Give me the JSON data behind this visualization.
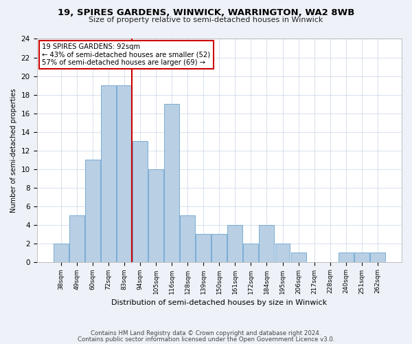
{
  "title1": "19, SPIRES GARDENS, WINWICK, WARRINGTON, WA2 8WB",
  "title2": "Size of property relative to semi-detached houses in Winwick",
  "xlabel": "Distribution of semi-detached houses by size in Winwick",
  "ylabel": "Number of semi-detached properties",
  "categories": [
    "38sqm",
    "49sqm",
    "60sqm",
    "72sqm",
    "83sqm",
    "94sqm",
    "105sqm",
    "116sqm",
    "128sqm",
    "139sqm",
    "150sqm",
    "161sqm",
    "172sqm",
    "184sqm",
    "195sqm",
    "206sqm",
    "217sqm",
    "228sqm",
    "240sqm",
    "251sqm",
    "262sqm"
  ],
  "values": [
    2,
    5,
    11,
    19,
    19,
    13,
    10,
    17,
    5,
    3,
    3,
    4,
    2,
    4,
    2,
    1,
    0,
    0,
    1,
    1,
    1
  ],
  "bar_color": "#b8cfe4",
  "bar_edge_color": "#7aadd4",
  "red_line_index": 4.5,
  "annotation_title": "19 SPIRES GARDENS: 92sqm",
  "annotation_line1": "← 43% of semi-detached houses are smaller (52)",
  "annotation_line2": "57% of semi-detached houses are larger (69) →",
  "annotation_box_edge": "#cc0000",
  "ylim": [
    0,
    24
  ],
  "yticks": [
    0,
    2,
    4,
    6,
    8,
    10,
    12,
    14,
    16,
    18,
    20,
    22,
    24
  ],
  "footer1": "Contains HM Land Registry data © Crown copyright and database right 2024.",
  "footer2": "Contains public sector information licensed under the Open Government Licence v3.0.",
  "bg_color": "#eef2f8",
  "plot_bg_color": "#ffffff"
}
